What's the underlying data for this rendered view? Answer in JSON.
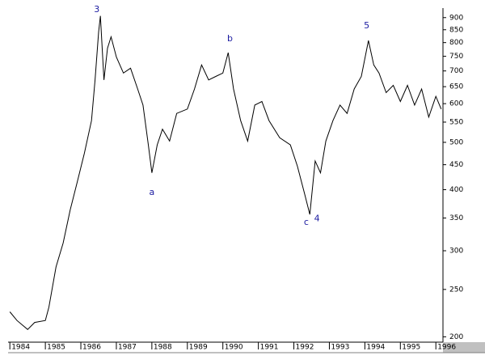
{
  "chart_data": {
    "type": "line",
    "log": true,
    "color": "#000000",
    "xlim": [
      1983.95,
      1996.2
    ],
    "ylim": [
      195,
      920
    ],
    "xticks": [
      1984,
      1985,
      1986,
      1987,
      1988,
      1989,
      1990,
      1991,
      1992,
      1993,
      1994,
      1995,
      1996
    ],
    "yticks": [
      200,
      250,
      300,
      350,
      400,
      450,
      500,
      550,
      600,
      650,
      700,
      750,
      800,
      850,
      900
    ],
    "x": [
      1984.0,
      1984.2,
      1984.5,
      1984.7,
      1985.0,
      1985.1,
      1985.3,
      1985.5,
      1985.7,
      1985.9,
      1986.1,
      1986.3,
      1986.4,
      1986.5,
      1986.55,
      1986.65,
      1986.75,
      1986.85,
      1987.0,
      1987.2,
      1987.4,
      1987.6,
      1987.75,
      1987.9,
      1988.0,
      1988.15,
      1988.3,
      1988.5,
      1988.7,
      1989.0,
      1989.2,
      1989.4,
      1989.6,
      1989.8,
      1990.0,
      1990.15,
      1990.3,
      1990.5,
      1990.7,
      1990.9,
      1991.1,
      1991.3,
      1991.6,
      1991.9,
      1992.1,
      1992.3,
      1992.45,
      1992.6,
      1992.75,
      1992.9,
      1993.1,
      1993.3,
      1993.5,
      1993.7,
      1993.9,
      1994.1,
      1994.25,
      1994.4,
      1994.6,
      1994.8,
      1995.0,
      1995.2,
      1995.4,
      1995.6,
      1995.8,
      1996.0,
      1996.15
    ],
    "values": [
      225,
      216,
      207,
      214,
      216,
      230,
      278,
      311,
      364,
      415,
      475,
      554,
      671,
      841,
      907,
      671,
      779,
      822,
      747,
      693,
      709,
      643,
      596,
      494,
      433,
      494,
      532,
      503,
      573,
      585,
      643,
      720,
      671,
      682,
      693,
      763,
      643,
      554,
      503,
      596,
      606,
      554,
      511,
      494,
      447,
      393,
      356,
      458,
      433,
      503,
      554,
      596,
      573,
      643,
      682,
      808,
      720,
      693,
      632,
      654,
      606,
      654,
      596,
      643,
      563,
      621,
      585
    ],
    "annotations": [
      {
        "text": "3",
        "x": 1986.45,
        "y": 935
      },
      {
        "text": "a",
        "x": 1988.0,
        "y": 395
      },
      {
        "text": "b",
        "x": 1990.2,
        "y": 815
      },
      {
        "text": "c",
        "x": 1992.35,
        "y": 343
      },
      {
        "text": "4",
        "x": 1992.65,
        "y": 349
      },
      {
        "text": "5",
        "x": 1994.05,
        "y": 865
      }
    ]
  }
}
